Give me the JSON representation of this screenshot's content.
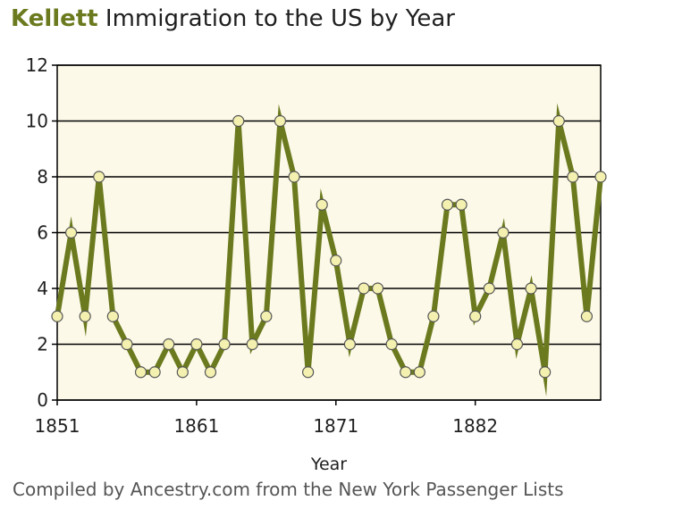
{
  "header": {
    "surname": "Kellett",
    "title_rest": " Immigration to the US by Year"
  },
  "footer": {
    "text": "Compiled by Ancestry.com from the New York Passenger Lists"
  },
  "colors": {
    "accent": "#6b7a1e",
    "line": "#6b7a1e",
    "marker_fill": "#f3f0b0",
    "marker_stroke": "#555555",
    "plot_background": "#fcf9e8",
    "gridline": "#000000",
    "text": "#1f1f1f"
  },
  "chart_data": {
    "type": "line",
    "title": "Kellett Immigration to the US by Year",
    "xlabel": "Year",
    "ylabel": "",
    "ylim": [
      0,
      12
    ],
    "yticks": [
      0,
      2,
      4,
      6,
      8,
      10,
      12
    ],
    "xticks": [
      1851,
      1861,
      1871,
      1882
    ],
    "grid": true,
    "legend": "none",
    "series": [
      {
        "values": [
          3,
          6,
          3,
          8,
          3,
          2,
          1,
          1,
          2,
          1,
          2,
          1,
          2,
          10,
          2,
          3,
          10,
          8,
          1,
          7,
          5,
          2,
          4,
          4,
          2,
          1,
          1,
          3,
          7,
          7,
          3,
          4,
          6,
          2,
          4,
          1,
          10,
          8,
          3,
          8
        ]
      }
    ]
  }
}
